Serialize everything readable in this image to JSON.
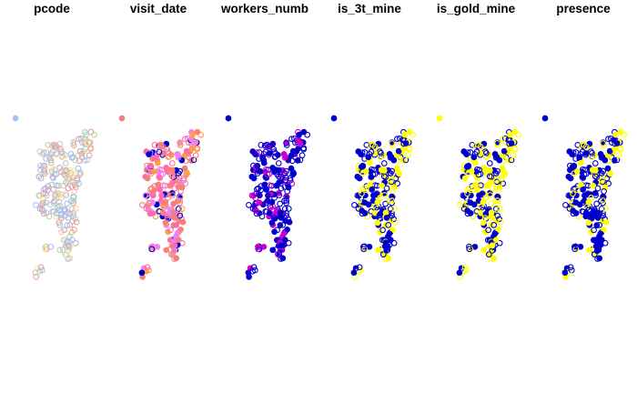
{
  "figure": {
    "panels": [
      {
        "title": "pcode",
        "scheme": "pcode"
      },
      {
        "title": "visit_date",
        "scheme": "visit_date"
      },
      {
        "title": "workers_numb",
        "scheme": "workers_numb"
      },
      {
        "title": "is_3t_mine",
        "scheme": "is_3t_mine"
      },
      {
        "title": "is_gold_mine",
        "scheme": "is_gold_mine"
      },
      {
        "title": "presence",
        "scheme": "presence"
      }
    ],
    "colors": {
      "pcode": [
        "#e8a0a0",
        "#b6d7a8",
        "#f9cb9c",
        "#a4c2f4",
        "#d5a6bd",
        "#c9c9c9",
        "#ffe599",
        "#9fc5e8"
      ],
      "visit_date": [
        "#fa8072",
        "#ff9f40",
        "#f08080",
        "#ff69b4",
        "#0000cd",
        "#ee82ee"
      ],
      "workers_numb": [
        "#0000cd",
        "#0000cd",
        "#0000cd",
        "#1a00c8",
        "#cc00cc"
      ],
      "binary": [
        "#0000cd",
        "#ffff00"
      ]
    }
  }
}
